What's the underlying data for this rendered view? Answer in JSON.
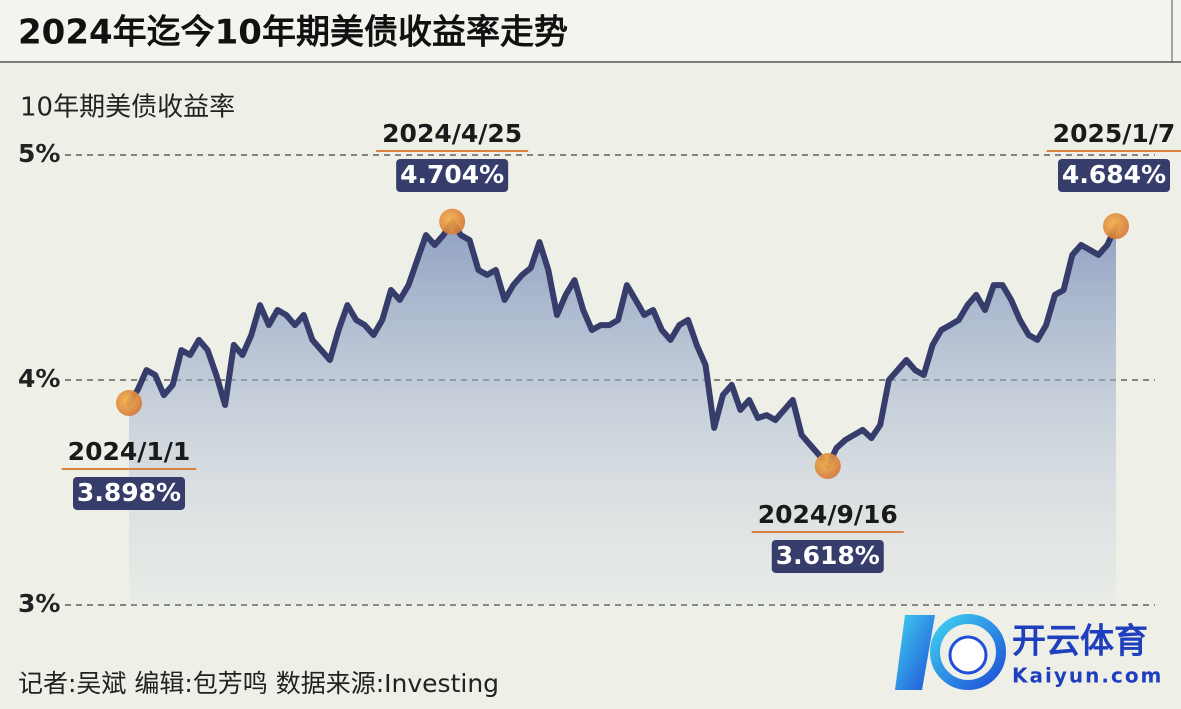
{
  "chart_data": {
    "type": "line",
    "title": "2024年迄今10年期美债收益率走势",
    "y_label": "10年期美债收益率",
    "footer": "记者:吴斌  编辑:包芳鸣  数据来源:Investing",
    "watermark": {
      "name": "开云体育",
      "site": "Kaiyun.com"
    },
    "color": "#363d6b",
    "ylim": [
      3,
      5
    ],
    "yticks": [
      {
        "value": 3,
        "label": "3%"
      },
      {
        "value": 4,
        "label": "4%"
      },
      {
        "value": 5,
        "label": "5%"
      }
    ],
    "grid": true,
    "values": [
      3.898,
      3.956,
      4.044,
      4.022,
      3.933,
      3.978,
      4.133,
      4.111,
      4.178,
      4.133,
      4.022,
      3.889,
      4.156,
      4.111,
      4.2,
      4.333,
      4.244,
      4.311,
      4.289,
      4.244,
      4.289,
      4.178,
      4.133,
      4.089,
      4.222,
      4.333,
      4.267,
      4.244,
      4.2,
      4.267,
      4.4,
      4.356,
      4.422,
      4.533,
      4.644,
      4.6,
      4.644,
      4.704,
      4.644,
      4.622,
      4.489,
      4.467,
      4.489,
      4.356,
      4.422,
      4.467,
      4.498,
      4.613,
      4.489,
      4.289,
      4.378,
      4.444,
      4.311,
      4.222,
      4.244,
      4.244,
      4.267,
      4.422,
      4.356,
      4.289,
      4.311,
      4.222,
      4.178,
      4.244,
      4.267,
      4.156,
      4.067,
      3.787,
      3.933,
      3.978,
      3.867,
      3.911,
      3.831,
      3.844,
      3.822,
      3.867,
      3.911,
      3.756,
      3.711,
      3.667,
      3.618,
      3.698,
      3.733,
      3.756,
      3.778,
      3.742,
      3.8,
      4.0,
      4.044,
      4.089,
      4.044,
      4.022,
      4.156,
      4.222,
      4.244,
      4.267,
      4.333,
      4.378,
      4.311,
      4.422,
      4.422,
      4.356,
      4.267,
      4.2,
      4.178,
      4.244,
      4.378,
      4.4,
      4.556,
      4.6,
      4.578,
      4.556,
      4.6,
      4.684
    ],
    "annotations": [
      {
        "label": "2024/1/1",
        "value": 3.898,
        "value_label": "3.898%"
      },
      {
        "label": "2024/4/25",
        "value": 4.704,
        "value_label": "4.704%"
      },
      {
        "label": "2024/9/16",
        "value": 3.618,
        "value_label": "3.618%"
      },
      {
        "label": "2025/1/7",
        "value": 4.684,
        "value_label": "4.684%"
      }
    ]
  }
}
